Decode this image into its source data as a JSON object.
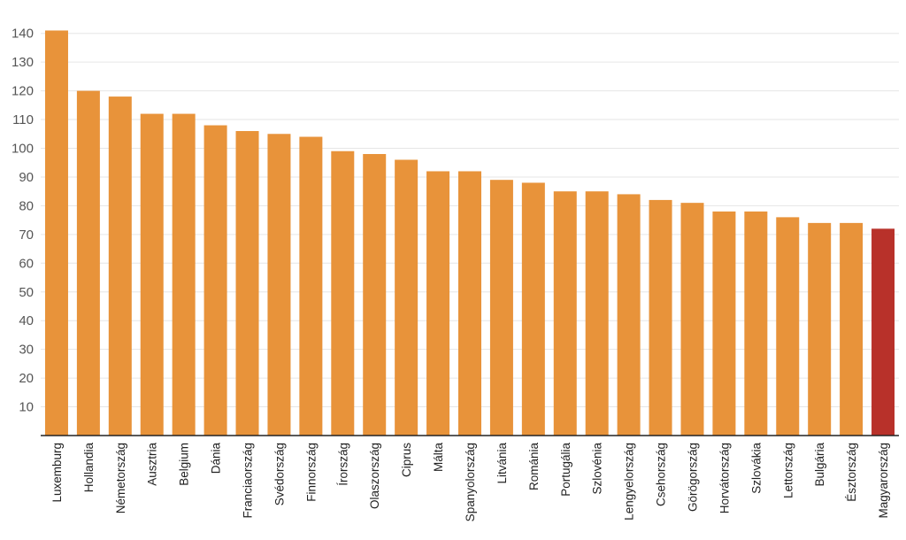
{
  "chart_data": {
    "type": "bar",
    "title": "",
    "xlabel": "",
    "ylabel": "",
    "ylim": [
      0,
      140
    ],
    "yticks": [
      10,
      20,
      30,
      40,
      50,
      60,
      70,
      80,
      90,
      100,
      110,
      120,
      130,
      140
    ],
    "grid": true,
    "colors": {
      "default": "#e8933a",
      "highlight": "#b8312a",
      "grid": "#e6e6e6",
      "axis": "#222222"
    },
    "highlight_category": "Magyarország",
    "categories": [
      "Luxemburg",
      "Hollandia",
      "Németország",
      "Ausztria",
      "Belgium",
      "Dánia",
      "Franciaország",
      "Svédország",
      "Finnország",
      "Írország",
      "Olaszország",
      "Ciprus",
      "Málta",
      "Spanyolország",
      "Litvánia",
      "Románia",
      "Portugália",
      "Szlovénia",
      "Lengyelország",
      "Csehország",
      "Görögország",
      "Horvátország",
      "Szlovákia",
      "Lettország",
      "Bulgária",
      "Észtország",
      "Magyarország"
    ],
    "values": [
      141,
      120,
      118,
      112,
      112,
      108,
      106,
      105,
      104,
      99,
      98,
      96,
      92,
      92,
      89,
      88,
      85,
      85,
      84,
      82,
      81,
      78,
      78,
      76,
      74,
      74,
      72
    ]
  }
}
